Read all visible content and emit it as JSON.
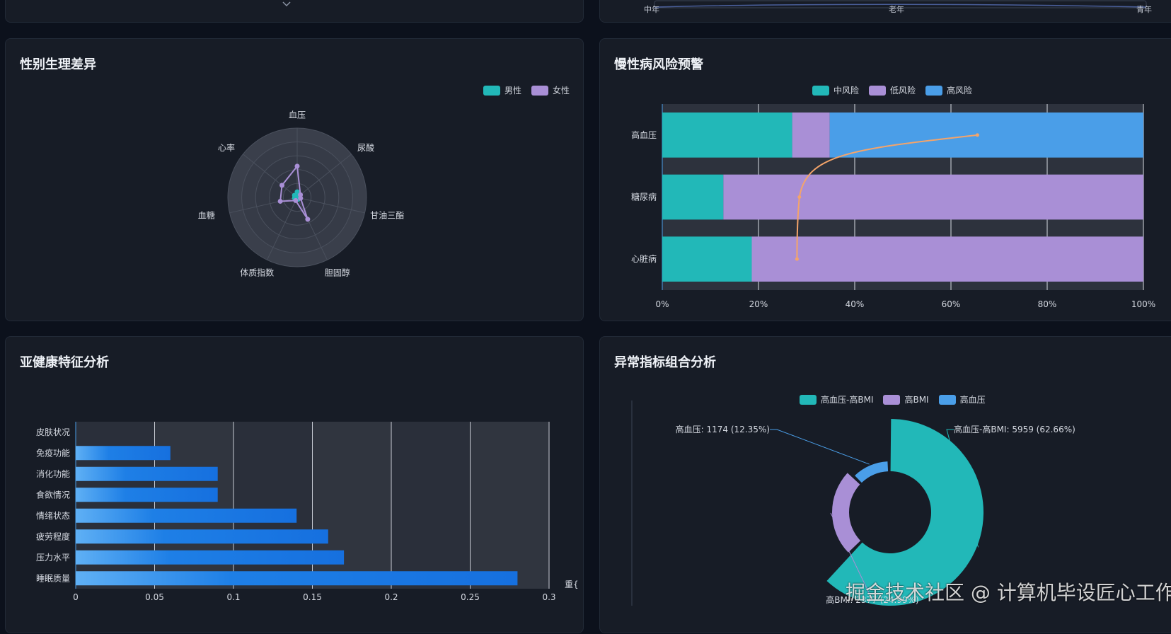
{
  "top_left_panel": {},
  "top_right_panel": {
    "axis_labels": [
      "中年",
      "老年",
      "青年"
    ]
  },
  "gender_panel": {
    "title": "性别生理差异",
    "legend": [
      {
        "label": "男性",
        "color": "#22b8b8"
      },
      {
        "label": "女性",
        "color": "#a98fd6"
      }
    ],
    "chart_data": {
      "type": "radar",
      "indicators": [
        "血压",
        "尿酸",
        "甘油三酯",
        "胆固醇",
        "体质指数",
        "血糖",
        "心率"
      ],
      "series": [
        {
          "name": "男性",
          "values": [
            0.08,
            0.02,
            0.02,
            0.03,
            0.03,
            0.04,
            0.05
          ]
        },
        {
          "name": "女性",
          "values": [
            0.45,
            0.06,
            0.05,
            0.35,
            0.05,
            0.25,
            0.28
          ]
        }
      ],
      "max": 1.0
    }
  },
  "chronic_panel": {
    "title": "慢性病风险预警",
    "legend": [
      {
        "label": "中风险",
        "color": "#22b8b8"
      },
      {
        "label": "低风险",
        "color": "#a98fd6"
      },
      {
        "label": "高风险",
        "color": "#4a9ee8"
      }
    ],
    "chart_data": {
      "type": "bar",
      "orientation": "horizontal-stacked-percent",
      "categories": [
        "高血压",
        "糖尿病",
        "心脏病"
      ],
      "series": [
        {
          "name": "中风险",
          "values": [
            27,
            12.7,
            18.6
          ]
        },
        {
          "name": "低风险",
          "values": [
            7.8,
            87.3,
            81.4
          ]
        },
        {
          "name": "高风险",
          "values": [
            65.2,
            0,
            0
          ]
        }
      ],
      "x_ticks": [
        "0%",
        "20%",
        "40%",
        "60%",
        "80%",
        "100%"
      ],
      "xlim": [
        0,
        100
      ],
      "overlay_line": {
        "x_values": [
          28,
          28.5,
          65.5
        ],
        "categories": [
          "心脏病",
          "糖尿病",
          "高血压"
        ],
        "color": "#f4a46a"
      }
    }
  },
  "subhealth_panel": {
    "title": "亚健康特征分析",
    "chart_data": {
      "type": "bar",
      "orientation": "horizontal",
      "categories": [
        "皮肤状况",
        "免疫功能",
        "消化功能",
        "食欲情况",
        "情绪状态",
        "疲劳程度",
        "压力水平",
        "睡眠质量"
      ],
      "values": [
        0,
        0.06,
        0.09,
        0.09,
        0.14,
        0.16,
        0.17,
        0.28
      ],
      "x_ticks": [
        "0",
        "0.05",
        "0.1",
        "0.15",
        "0.2",
        "0.25",
        "0.3"
      ],
      "xlim": [
        0,
        0.3
      ],
      "xlabel": "重{"
    }
  },
  "abnormal_panel": {
    "title": "异常指标组合分析",
    "legend": [
      {
        "label": "高血压-高BMI",
        "color": "#22b8b8"
      },
      {
        "label": "高BMI",
        "color": "#a98fd6"
      },
      {
        "label": "高血压",
        "color": "#4a9ee8"
      }
    ],
    "chart_data": {
      "type": "pie",
      "variant": "rose-donut",
      "slices": [
        {
          "name": "高血压-高BMI",
          "value": 5959,
          "percent": "62.66%",
          "label": "高血压-高BMI: 5959 (62.66%)"
        },
        {
          "name": "高BMI",
          "value": 2377,
          "percent": "24.99%",
          "label": "高BMI: 2377 (24.99%)"
        },
        {
          "name": "高血压",
          "value": 1174,
          "percent": "12.35%",
          "label": "高血压: 1174 (12.35%)"
        }
      ]
    }
  },
  "watermark": "掘金技术社区 @ 计算机毕设匠心工作室"
}
